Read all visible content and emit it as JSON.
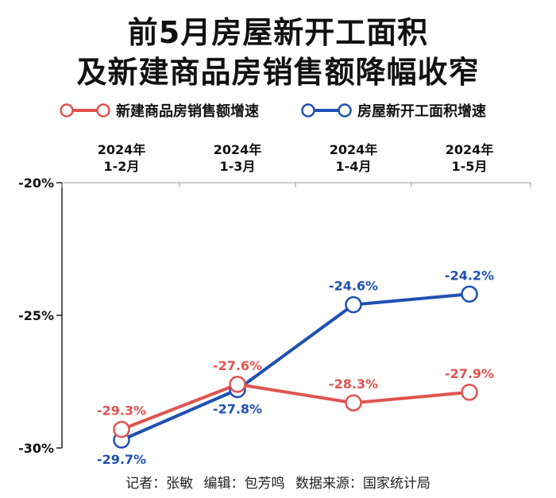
{
  "title_line1": "前5月房屋新开工面积",
  "title_line2": "及新建商品房销售额降幅收窄",
  "footer": {
    "reporter": "记者：张敏",
    "editor": "编辑：包芳鸣",
    "source": "数据来源：国家统计局"
  },
  "colors": {
    "sales": "#e0534f",
    "starts": "#1f50b3"
  },
  "chart_data": {
    "type": "line",
    "categories": [
      [
        "2024年",
        "1-2月"
      ],
      [
        "2024年",
        "1-3月"
      ],
      [
        "2024年",
        "1-4月"
      ],
      [
        "2024年",
        "1-5月"
      ]
    ],
    "series": [
      {
        "name": "新建商品房销售额增速",
        "values": [
          -29.3,
          -27.6,
          -28.3,
          -27.9
        ],
        "labels": [
          "-29.3%",
          "-27.6%",
          "-28.3%",
          "-27.9%"
        ],
        "color": "#e0534f"
      },
      {
        "name": "房屋新开工面积增速",
        "values": [
          -29.7,
          -27.8,
          -24.6,
          -24.2
        ],
        "labels": [
          "-29.7%",
          "-27.8%",
          "-24.6%",
          "-24.2%"
        ],
        "color": "#1f50b3"
      }
    ],
    "yticks": [
      -20,
      -25,
      -30
    ],
    "ytick_labels": [
      "-20%",
      "-25%",
      "-30%"
    ],
    "ylim": [
      -30,
      -20
    ],
    "legend": "top",
    "grid": false
  }
}
